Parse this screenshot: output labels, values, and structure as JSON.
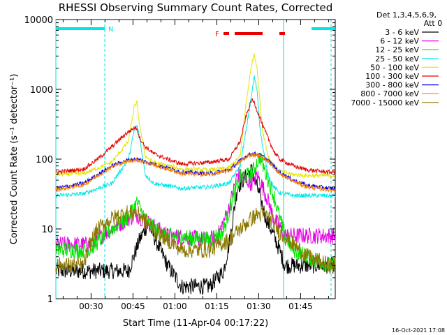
{
  "chart_data": {
    "type": "line",
    "title": "RHESSI Observing Summary Count Rates, Corrected",
    "xlabel": "Start Time (11-Apr-04 00:17:22)",
    "ylabel": "Corrected Count Rate (s⁻¹ detector⁻¹)",
    "y_scale": "log",
    "ylim": [
      1,
      10000
    ],
    "xlim_minutes": [
      0,
      100
    ],
    "x_ticks": [
      {
        "label": "00:30",
        "value": 12.6
      },
      {
        "label": "00:45",
        "value": 27.6
      },
      {
        "label": "01:00",
        "value": 42.6
      },
      {
        "label": "01:15",
        "value": 57.6
      },
      {
        "label": "01:30",
        "value": 72.6
      },
      {
        "label": "01:45",
        "value": 87.6
      }
    ],
    "y_ticks": [
      {
        "label": "1",
        "value": 1
      },
      {
        "label": "10",
        "value": 10
      },
      {
        "label": "100",
        "value": 100
      },
      {
        "label": "1000",
        "value": 1000
      },
      {
        "label": "10000",
        "value": 10000
      }
    ],
    "legend_header": [
      "Det 1,3,4,5,6,9,",
      "Att 0"
    ],
    "legend_position": "right",
    "series": [
      {
        "name": "3 - 6 keV",
        "color": "#000000",
        "x": [
          26,
          30,
          33,
          35,
          40,
          45,
          55,
          60,
          62,
          65,
          70,
          73,
          75,
          78,
          80,
          82
        ],
        "y": [
          2.5,
          7,
          12,
          8,
          3,
          1.5,
          1.5,
          2.5,
          6,
          40,
          70,
          30,
          15,
          8,
          5,
          3
        ]
      },
      {
        "name": "6 - 12 keV",
        "color": "#e600e6",
        "x": [
          12,
          20,
          26,
          29,
          32,
          35,
          40,
          55,
          58,
          62,
          65,
          70,
          72,
          74,
          76,
          78,
          80,
          82
        ],
        "y": [
          6,
          10,
          14,
          16,
          13,
          11,
          8,
          7,
          8,
          20,
          60,
          45,
          60,
          40,
          25,
          14,
          11,
          8
        ]
      },
      {
        "name": "12 - 25 keV",
        "color": "#00e600",
        "x": [
          12,
          20,
          26,
          29,
          32,
          35,
          40,
          55,
          60,
          63,
          66,
          70,
          73,
          76,
          78,
          80,
          82,
          85,
          90,
          98
        ],
        "y": [
          5,
          10,
          15,
          24,
          14,
          10,
          8,
          7,
          9,
          25,
          55,
          60,
          110,
          50,
          30,
          15,
          8,
          5,
          4,
          3
        ]
      },
      {
        "name": "25 - 50 keV",
        "color": "#00e6e6",
        "x": [
          0,
          10,
          20,
          26,
          28,
          29,
          30,
          32,
          35,
          45,
          55,
          62,
          66,
          68,
          70,
          71,
          72,
          73,
          74,
          76,
          78,
          80,
          85,
          90,
          98
        ],
        "y": [
          30,
          32,
          45,
          100,
          250,
          300,
          200,
          60,
          45,
          38,
          40,
          45,
          80,
          250,
          800,
          1500,
          1000,
          300,
          150,
          60,
          40,
          33,
          30,
          30,
          30
        ]
      },
      {
        "name": "50 - 100 keV",
        "color": "#e6e600",
        "x": [
          0,
          10,
          20,
          26,
          28,
          29,
          30,
          32,
          35,
          45,
          55,
          62,
          66,
          68,
          70,
          71,
          72,
          73,
          74,
          76,
          78,
          80,
          85,
          90,
          98
        ],
        "y": [
          60,
          62,
          90,
          180,
          550,
          650,
          300,
          110,
          90,
          72,
          70,
          75,
          110,
          600,
          2200,
          3300,
          2000,
          700,
          250,
          110,
          80,
          68,
          60,
          58,
          58
        ]
      },
      {
        "name": "100 - 300 keV",
        "color": "#e60000",
        "x": [
          0,
          10,
          15,
          20,
          25,
          28,
          29,
          30,
          32,
          35,
          40,
          45,
          55,
          62,
          66,
          68,
          70,
          71,
          72,
          73,
          74,
          76,
          78,
          80,
          85,
          90,
          98
        ],
        "y": [
          65,
          72,
          100,
          150,
          230,
          280,
          280,
          200,
          150,
          120,
          100,
          85,
          90,
          100,
          180,
          400,
          700,
          650,
          500,
          400,
          300,
          200,
          130,
          100,
          80,
          70,
          65
        ]
      },
      {
        "name": "300 - 800 keV",
        "color": "#0000e6",
        "x": [
          0,
          10,
          15,
          20,
          25,
          28,
          30,
          32,
          35,
          40,
          45,
          55,
          62,
          66,
          68,
          70,
          72,
          74,
          76,
          78,
          80,
          85,
          90,
          98
        ],
        "y": [
          38,
          45,
          60,
          80,
          95,
          100,
          98,
          92,
          85,
          75,
          65,
          62,
          70,
          95,
          110,
          120,
          118,
          110,
          95,
          80,
          65,
          50,
          42,
          38
        ]
      },
      {
        "name": "800 - 7000 keV",
        "color": "#ff8000",
        "x": [
          0,
          10,
          15,
          20,
          25,
          28,
          30,
          32,
          35,
          40,
          45,
          55,
          62,
          66,
          68,
          70,
          72,
          74,
          76,
          78,
          80,
          85,
          90,
          98
        ],
        "y": [
          36,
          43,
          58,
          78,
          92,
          97,
          95,
          90,
          83,
          72,
          62,
          60,
          68,
          92,
          107,
          116,
          114,
          106,
          92,
          77,
          62,
          48,
          40,
          36
        ]
      },
      {
        "name": "7000 - 15000 keV",
        "color": "#8c7800",
        "x": [
          0,
          10,
          12,
          15,
          20,
          25,
          28,
          30,
          32,
          35,
          40,
          45,
          55,
          62,
          66,
          70,
          72,
          74,
          76,
          78,
          80,
          85,
          90,
          98
        ],
        "y": [
          3,
          3,
          6,
          10,
          14,
          17,
          17,
          16,
          13,
          10,
          7,
          5,
          5,
          7,
          10,
          14,
          16,
          16,
          15,
          12,
          9,
          6,
          4,
          3
        ]
      }
    ],
    "annotations": {
      "night_label": "N",
      "flare_label": "F",
      "night_intervals": [
        [
          0,
          17.5
        ],
        [
          91.5,
          100
        ]
      ],
      "flare_intervals": [
        [
          60,
          62
        ],
        [
          64,
          74
        ],
        [
          80,
          82
        ]
      ],
      "saa_markers": [
        0,
        17.5,
        81.5,
        98.5
      ]
    },
    "footer_date": "16-Oct-2021 17:08",
    "colors": {
      "night_bar": "#00e6e6",
      "flare_bar": "#e60000",
      "axes": "#000000",
      "background": "#ffffff"
    }
  }
}
